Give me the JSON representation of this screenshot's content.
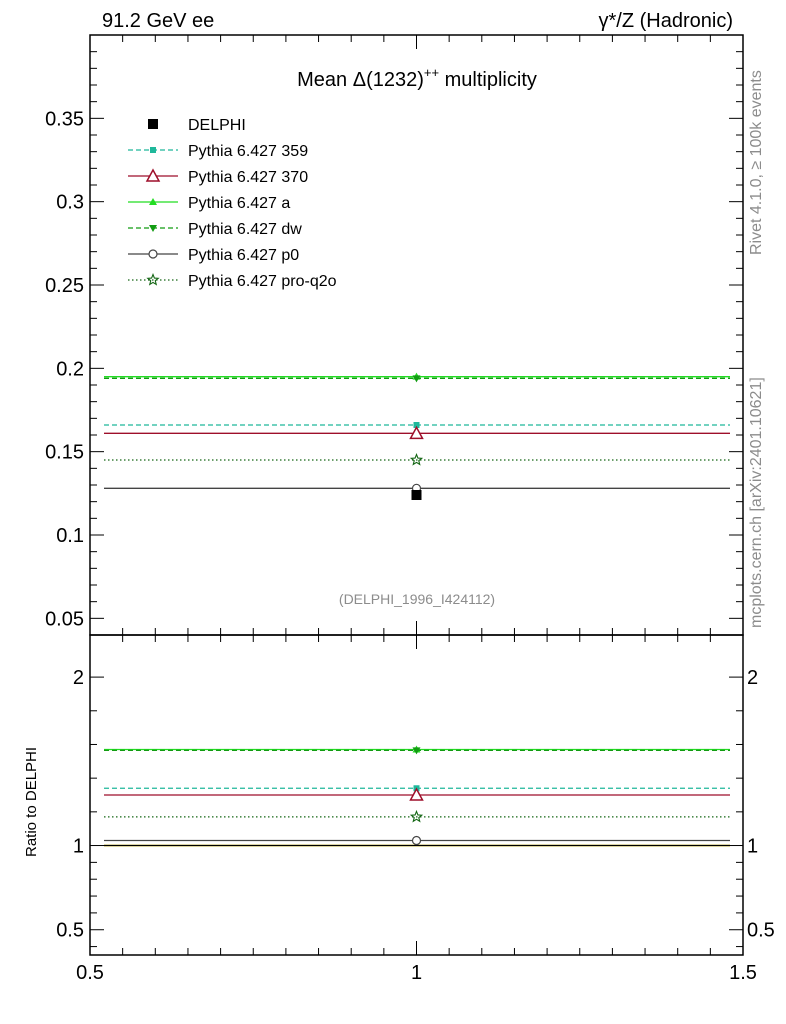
{
  "header": {
    "left": "91.2 GeV ee",
    "right": "γ*/Z (Hadronic)"
  },
  "side_labels": {
    "rivet": "Rivet 4.1.0, ≥ 100k events",
    "mcplots": "mcplots.cern.ch [arXiv:2401.10621]"
  },
  "chart_data": [
    {
      "type": "scatter",
      "title": "Mean Δ(1232)++ multiplicity",
      "title_parts": {
        "before": "Mean ",
        "delta": "Δ",
        "mid": "(1232)",
        "sup": "++",
        "after": " multiplicity"
      },
      "tag": "(DELPHI_1996_I424112)",
      "xlim": [
        0.5,
        1.5
      ],
      "ylim": [
        0.04,
        0.4
      ],
      "yticks": [
        0.05,
        0.1,
        0.15,
        0.2,
        0.25,
        0.3,
        0.35
      ],
      "ytick_labels": [
        "0.05",
        "0.1",
        "0.15",
        "0.2",
        "0.25",
        "0.3",
        "0.35"
      ],
      "data": {
        "name": "DELPHI",
        "x": 1,
        "y": 0.124
      },
      "series": [
        {
          "name": "Pythia 6.427 359",
          "value": 0.166,
          "color": "#1fb89b",
          "dash": "5,3",
          "marker": "square-small"
        },
        {
          "name": "Pythia 6.427 370",
          "value": 0.161,
          "color": "#9e0f2a",
          "dash": "",
          "marker": "triangle-open"
        },
        {
          "name": "Pythia 6.427 a",
          "value": 0.195,
          "color": "#22dd22",
          "dash": "",
          "marker": "triangle-up"
        },
        {
          "name": "Pythia 6.427 dw",
          "value": 0.194,
          "color": "#129c12",
          "dash": "5,3",
          "marker": "triangle-down"
        },
        {
          "name": "Pythia 6.427 p0",
          "value": 0.128,
          "color": "#444444",
          "dash": "",
          "marker": "circle-open"
        },
        {
          "name": "Pythia 6.427 pro-q2o",
          "value": 0.145,
          "color": "#146614",
          "dash": "1.5,2.5",
          "marker": "star-open"
        }
      ]
    },
    {
      "type": "scatter",
      "ylabel": "Ratio to DELPHI",
      "xlim": [
        0.5,
        1.5
      ],
      "ylim": [
        0.35,
        2.25
      ],
      "yticks": [
        0.5,
        1,
        2
      ],
      "ytick_labels": [
        "0.5",
        "1",
        "2"
      ],
      "xticks": [
        0.5,
        1,
        1.5
      ],
      "xtick_labels": [
        "0.5",
        "1",
        "1.5"
      ],
      "series": [
        {
          "name": "Pythia 6.427 359",
          "value": 1.34
        },
        {
          "name": "Pythia 6.427 370",
          "value": 1.3
        },
        {
          "name": "Pythia 6.427 a",
          "value": 1.57
        },
        {
          "name": "Pythia 6.427 dw",
          "value": 1.565
        },
        {
          "name": "Pythia 6.427 p0",
          "value": 1.03
        },
        {
          "name": "Pythia 6.427 pro-q2o",
          "value": 1.17
        }
      ]
    }
  ]
}
